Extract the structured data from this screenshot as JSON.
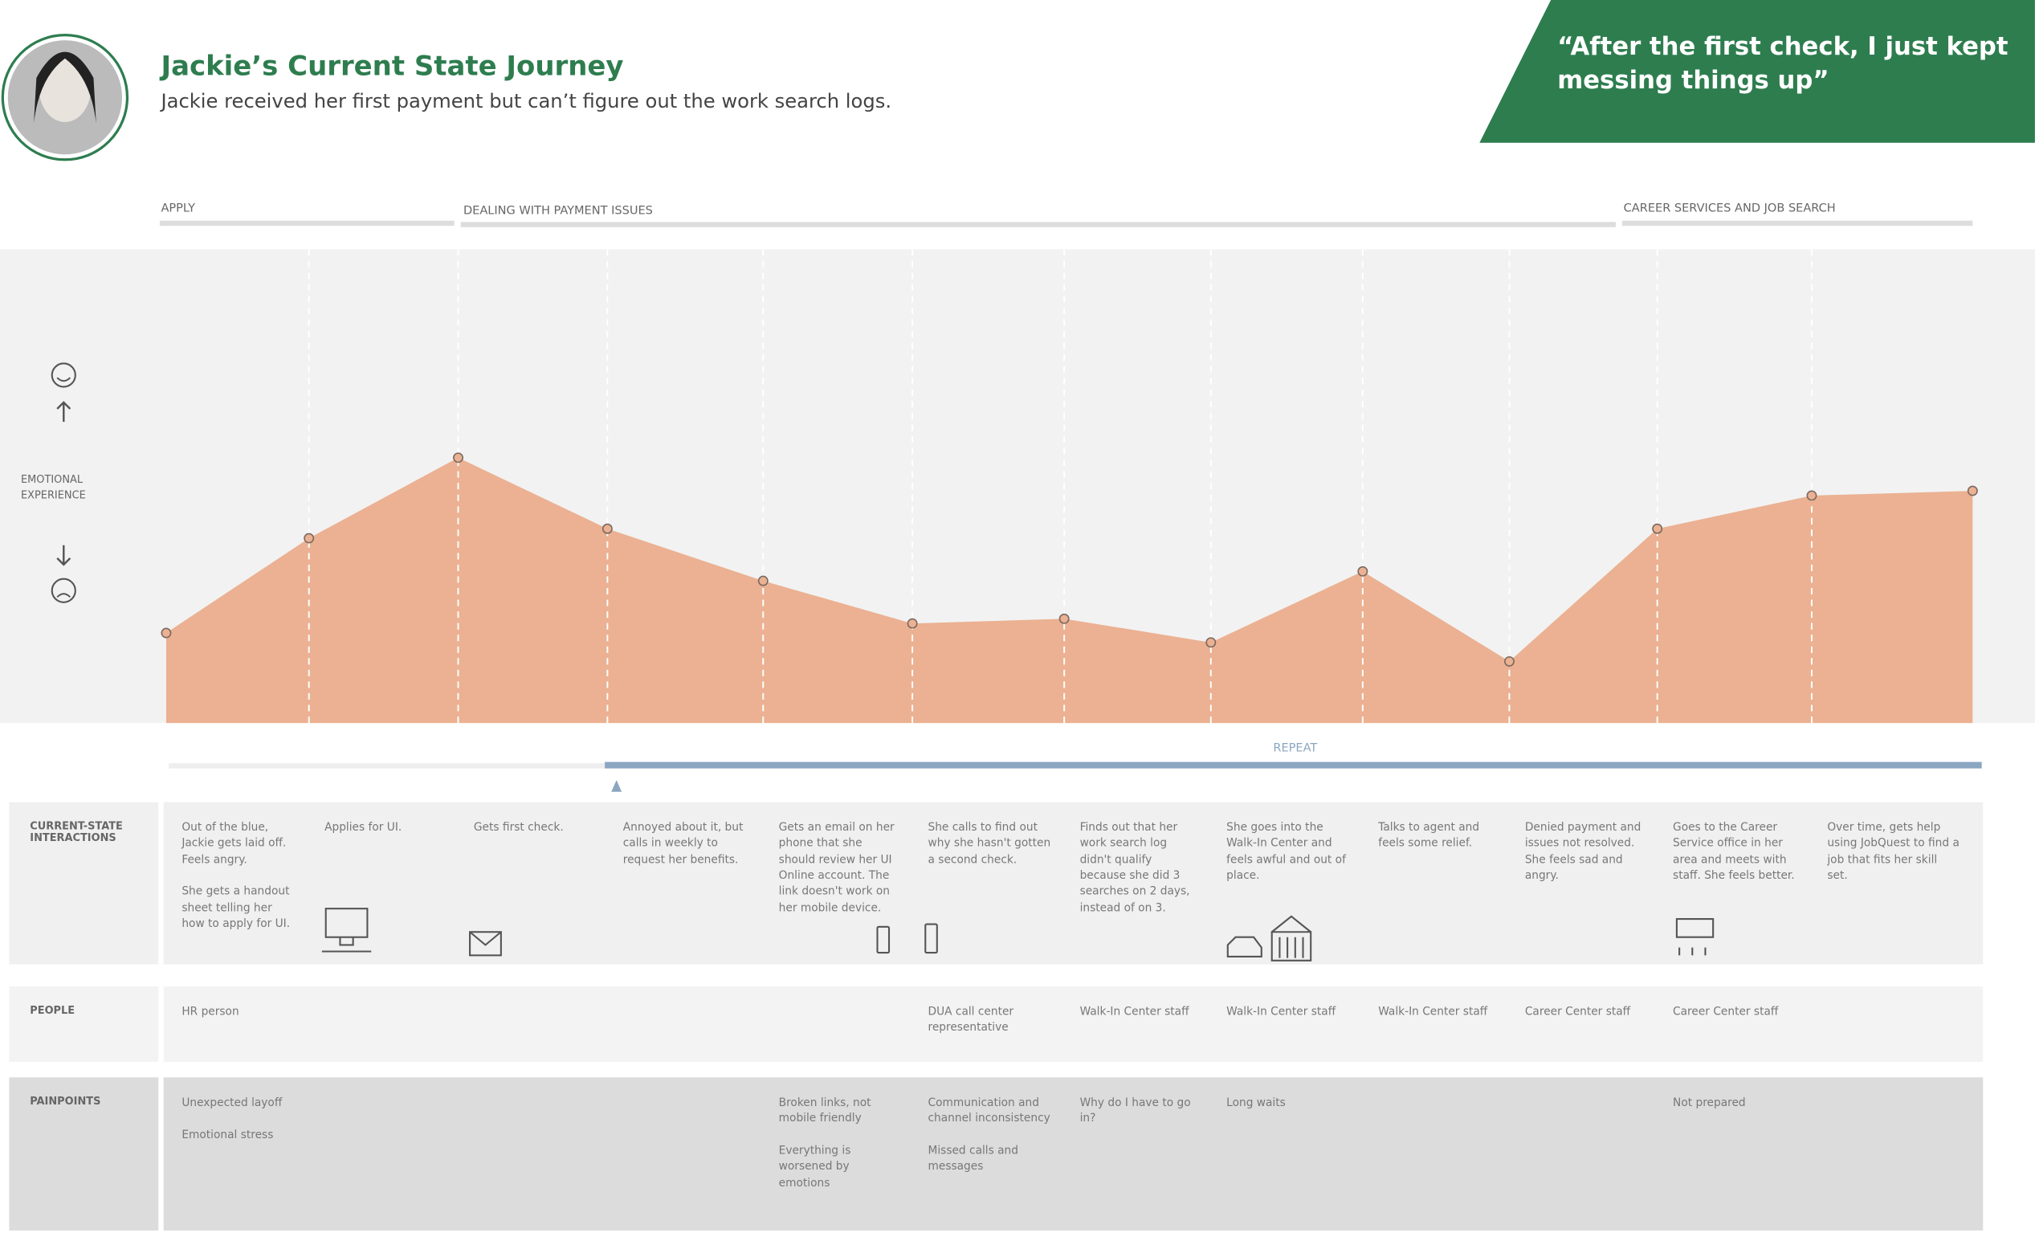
{
  "header": {
    "title": "Jackie’s Current State Journey",
    "subtitle": "Jackie received her first payment but can’t figure out the work search logs.",
    "quote": "“After the first check, I just kept messing things up”"
  },
  "phases": [
    "APPLY",
    "DEALING WITH PAYMENT ISSUES",
    "CAREER SERVICES AND JOB SEARCH"
  ],
  "emotion_label": "EMOTIONAL EXPERIENCE",
  "emotion_levels": [
    19,
    39,
    56,
    41,
    30,
    21,
    22,
    17,
    32,
    13,
    41,
    48,
    49
  ],
  "repeat_label": "REPEAT",
  "rows": [
    {
      "label": "CURRENT-STATE INTERACTIONS",
      "cells": [
        "Out of the blue, Jackie gets laid off. Feels angry.\n\nShe gets a handout sheet telling her how to apply for UI.",
        "Applies for UI.",
        "Gets first check.",
        "Annoyed about it, but calls in weekly to request her benefits.",
        "Gets an email on her phone that she should review her UI Online account. The link doesn't work on her mobile device.",
        "She calls to find out why she hasn't gotten a second check.",
        "Finds out that her work search log didn't qualify because she did 3 searches on 2 days, instead of on 3.",
        "She goes into the Walk-In Center and feels awful and out of place.",
        "Talks to agent and feels some relief.",
        "Denied payment and issues not resolved. She feels sad and angry.",
        "Goes to the Career Service office in her area and meets with staff. She feels better.",
        "Over time, gets help using JobQuest to find a job that fits her skill set."
      ]
    },
    {
      "label": "PEOPLE",
      "cells": [
        "HR person",
        null,
        null,
        null,
        null,
        "DUA call center representative",
        "Walk-In Center staff",
        "Walk-In Center staff",
        "Walk-In Center staff",
        "Career Center staff",
        "Career Center staff",
        null
      ]
    },
    {
      "label": "PAINPOINTS",
      "cells": [
        "Unexpected layoff\n\nEmotional stress",
        null,
        null,
        null,
        "Broken links, not mobile friendly\n\nEverything is worsened by emotions",
        "Communication and channel inconsistency\n\nMissed calls and messages",
        "Why do I have to go in?",
        "Long waits",
        null,
        null,
        "Not prepared",
        null
      ]
    }
  ]
}
